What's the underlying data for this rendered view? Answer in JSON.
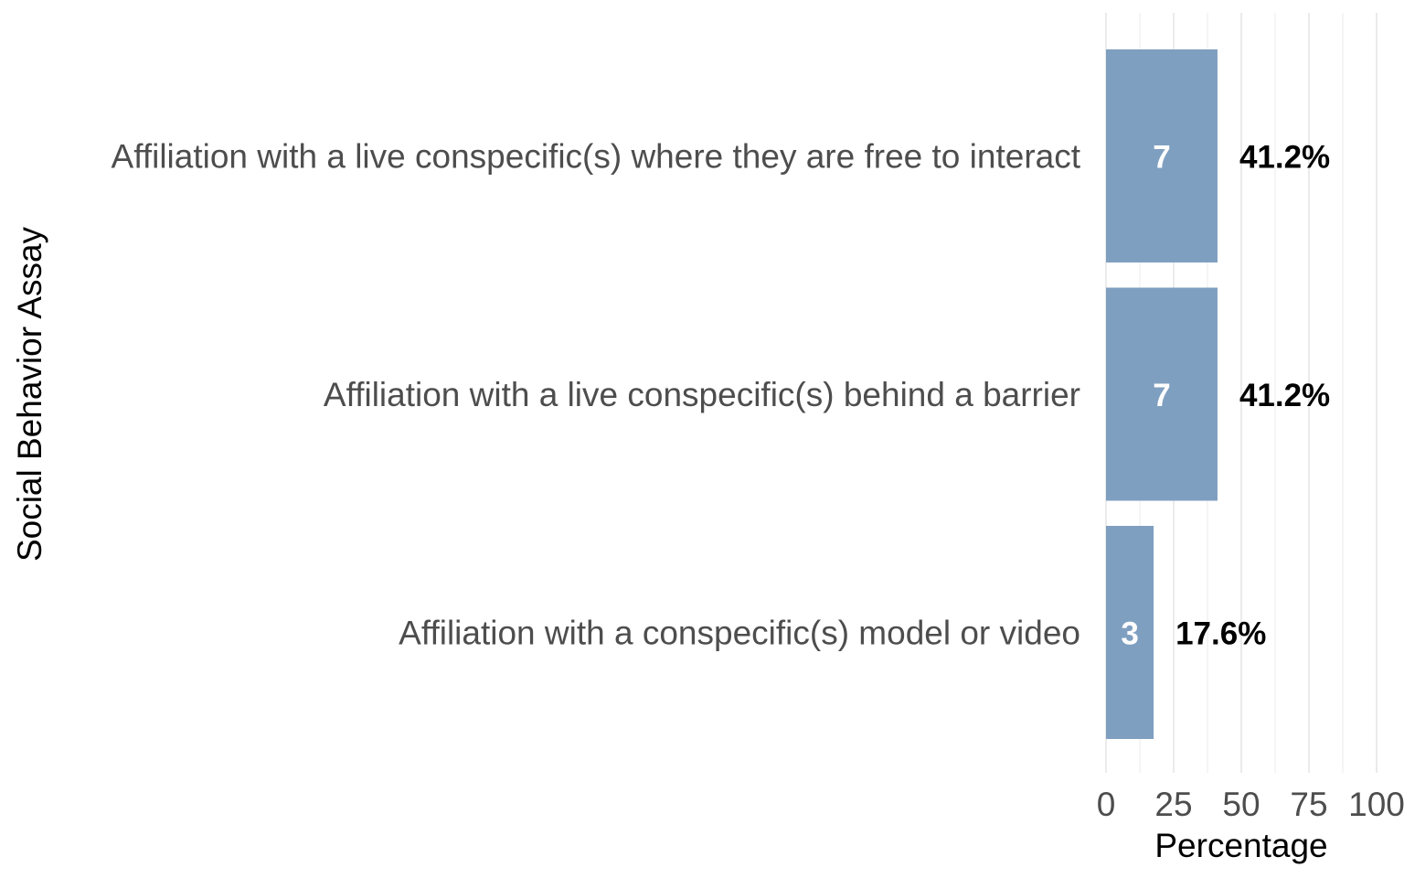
{
  "chart_data": {
    "type": "bar",
    "orientation": "horizontal",
    "categories": [
      "Affiliation with a live conspecific(s) where they are free to interact",
      "Affiliation with a live conspecific(s) behind a barrier",
      "Affiliation with a conspecific(s) model or video"
    ],
    "values": [
      41.2,
      41.2,
      17.6
    ],
    "counts": [
      "7",
      "7",
      "3"
    ],
    "value_labels": [
      "41.2%",
      "41.2%",
      "17.6%"
    ],
    "xlabel": "Percentage",
    "ylabel": "Social Behavior Assay",
    "xlim": [
      0,
      100
    ],
    "x_ticks": [
      0,
      25,
      50,
      75,
      100
    ],
    "x_tick_labels": [
      "0",
      "25",
      "50",
      "75",
      "100"
    ],
    "grid": true,
    "bar_color": "#7f9fc0",
    "grid_color": "#ebebeb"
  }
}
